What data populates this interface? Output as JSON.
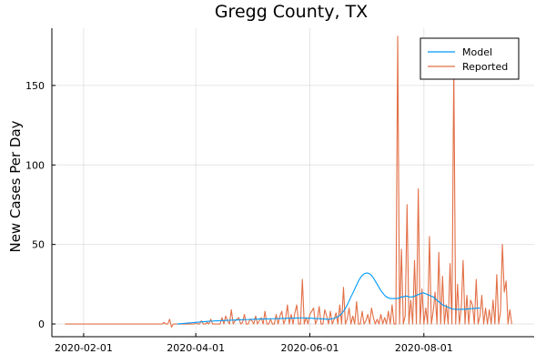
{
  "chart_data": {
    "type": "line",
    "title": "Gregg County, TX",
    "xlabel": "",
    "ylabel": "New Cases Per Day",
    "x_start": "2020-01-22",
    "x_ticks": [
      "2020-02-01",
      "2020-04-01",
      "2020-06-01",
      "2020-08-01"
    ],
    "y_ticks": [
      0,
      50,
      100,
      150
    ],
    "ylim": [
      -8,
      186
    ],
    "xlim": [
      "2020-01-15",
      "2020-09-29"
    ],
    "grid": true,
    "legend_position": "top-right",
    "series": [
      {
        "name": "Model",
        "color": "#009AFA",
        "start": "2020-03-22",
        "values": [
          0,
          0.1,
          0.2,
          0.3,
          0.4,
          0.5,
          0.6,
          0.7,
          0.8,
          0.9,
          1,
          1.1,
          1.2,
          1.3,
          1.4,
          1.5,
          1.6,
          1.7,
          1.8,
          1.8,
          1.9,
          2,
          2,
          2.1,
          2.1,
          2.2,
          2.2,
          2.3,
          2.3,
          2.4,
          2.4,
          2.5,
          2.5,
          2.6,
          2.6,
          2.7,
          2.7,
          2.8,
          2.8,
          2.9,
          2.9,
          3,
          3,
          3,
          3.1,
          3.1,
          3.1,
          3.2,
          3.2,
          3.2,
          3.3,
          3.3,
          3.3,
          3.4,
          3.4,
          3.4,
          3.5,
          3.5,
          3.5,
          3.6,
          3.6,
          3.6,
          3.7,
          3.7,
          3.7,
          3.8,
          3.8,
          3.8,
          3.8,
          3.7,
          3.7,
          3.6,
          3.6,
          3.5,
          3.4,
          3.4,
          3.3,
          3.2,
          3.2,
          3.1,
          3,
          3,
          3.1,
          3.3,
          3.6,
          4,
          4.6,
          5.4,
          6.5,
          8,
          9.8,
          12,
          14.5,
          17,
          19.5,
          22,
          24.5,
          27,
          29,
          30.5,
          31.5,
          32,
          32,
          31.5,
          30.5,
          29,
          27,
          25,
          23,
          21,
          19.5,
          18,
          17,
          16.5,
          16,
          16,
          16,
          16,
          16,
          16.5,
          17,
          17,
          17.5,
          17.5,
          17,
          17,
          17,
          17.5,
          18,
          18.5,
          19,
          19.5,
          19.5,
          19,
          18.5,
          18,
          17.5,
          17,
          16,
          15,
          14,
          13,
          12,
          11.5,
          11,
          10.5,
          10,
          9.5,
          9.3,
          9.2,
          9.2,
          9.2,
          9.2,
          9.3,
          9.3,
          9.4,
          9.5,
          9.6,
          9.7,
          9.8,
          9.9,
          10,
          10
        ]
      },
      {
        "name": "Reported",
        "color": "#E26F46",
        "start": "2020-01-22",
        "values": [
          0,
          0,
          0,
          0,
          0,
          0,
          0,
          0,
          0,
          0,
          0,
          0,
          0,
          0,
          0,
          0,
          0,
          0,
          0,
          0,
          0,
          0,
          0,
          0,
          0,
          0,
          0,
          0,
          0,
          0,
          0,
          0,
          0,
          0,
          0,
          0,
          0,
          0,
          0,
          0,
          0,
          0,
          0,
          0,
          0,
          0,
          0,
          0,
          0,
          0,
          0,
          0,
          0,
          1,
          0,
          0,
          3,
          -2,
          0,
          0,
          0,
          0,
          0,
          0,
          0,
          0,
          0,
          0,
          0,
          0,
          1,
          0,
          0,
          2,
          0,
          0,
          1,
          0,
          3,
          0,
          0,
          0,
          0,
          0,
          4,
          0,
          5,
          2,
          0,
          9,
          0,
          2,
          3,
          4,
          0,
          1,
          6,
          0,
          0,
          3,
          2,
          0,
          5,
          0,
          2,
          4,
          0,
          8,
          0,
          0,
          3,
          0,
          0,
          6,
          0,
          5,
          8,
          0,
          3,
          12,
          0,
          6,
          0,
          7,
          12,
          0,
          0,
          28,
          0,
          4,
          0,
          6,
          8,
          10,
          0,
          3,
          11,
          0,
          0,
          9,
          5,
          0,
          8,
          0,
          3,
          7,
          0,
          12,
          0,
          23,
          0,
          3,
          10,
          0,
          5,
          0,
          14,
          0,
          0,
          8,
          0,
          2,
          6,
          0,
          10,
          4,
          0,
          3,
          0,
          6,
          0,
          4,
          0,
          8,
          0,
          12,
          0,
          0,
          181,
          0,
          47,
          0,
          5,
          75,
          0,
          15,
          0,
          40,
          0,
          85,
          0,
          22,
          0,
          10,
          0,
          55,
          0,
          8,
          20,
          0,
          45,
          0,
          30,
          0,
          12,
          0,
          38,
          0,
          162,
          0,
          25,
          0,
          10,
          40,
          0,
          18,
          0,
          15,
          12,
          0,
          28,
          0,
          5,
          18,
          0,
          10,
          0,
          9,
          0,
          15,
          0,
          31,
          0,
          8,
          50,
          20,
          27,
          0,
          9,
          0
        ]
      }
    ]
  }
}
